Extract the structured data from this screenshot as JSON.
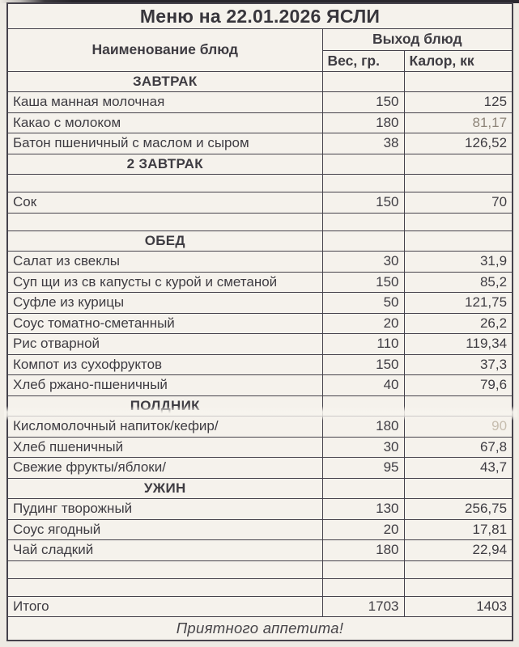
{
  "title": "Меню на 22.01.2026 ЯСЛИ",
  "colors": {
    "paper": "#efece5",
    "ink": "#3e3c42",
    "line": "#45424b"
  },
  "table": {
    "headers": {
      "name": "Наименование блюд",
      "output_group": "Выход блюд",
      "weight": "Вес, гр.",
      "calories": "Калор, кк"
    },
    "rows": [
      {
        "type": "section",
        "label": "ЗАВТРАК"
      },
      {
        "type": "item",
        "name": "Каша манная молочная",
        "weight": "150",
        "calories": "125"
      },
      {
        "type": "item",
        "name": "Какао с молоком",
        "weight": "180",
        "calories": "81,17",
        "dim": true
      },
      {
        "type": "item",
        "name": "Батон пшеничный с маслом и сыром",
        "weight": "38",
        "calories": "126,52"
      },
      {
        "type": "section",
        "label": "2 ЗАВТРАК"
      },
      {
        "type": "empty"
      },
      {
        "type": "item",
        "name": "Сок",
        "weight": "150",
        "calories": "70"
      },
      {
        "type": "empty"
      },
      {
        "type": "section",
        "label": "ОБЕД"
      },
      {
        "type": "item",
        "name": "Салат из свеклы",
        "weight": "30",
        "calories": "31,9"
      },
      {
        "type": "item",
        "name": "Суп щи из св капусты с курой и сметаной",
        "weight": "150",
        "calories": "85,2"
      },
      {
        "type": "item",
        "name": "Суфле из курицы",
        "weight": "50",
        "calories": "121,75"
      },
      {
        "type": "item",
        "name": "Соус томатно-сметанный",
        "weight": "20",
        "calories": "26,2"
      },
      {
        "type": "item",
        "name": "Рис отварной",
        "weight": "110",
        "calories": "119,34"
      },
      {
        "type": "item",
        "name": "Компот из сухофруктов",
        "weight": "150",
        "calories": "37,3"
      },
      {
        "type": "item",
        "name": "Хлеб ржано-пшеничный",
        "weight": "40",
        "calories": "79,6"
      },
      {
        "type": "section",
        "label": "ПОЛДНИК"
      },
      {
        "type": "item",
        "name": "Кисломолочный напиток/кефир/",
        "weight": "180",
        "calories": "90",
        "faded": true
      },
      {
        "type": "item",
        "name": "Хлеб пшеничный",
        "weight": "30",
        "calories": "67,8"
      },
      {
        "type": "item",
        "name": "Свежие фрукты/яблоки/",
        "weight": "95",
        "calories": "43,7"
      },
      {
        "type": "section",
        "label": "УЖИН"
      },
      {
        "type": "item",
        "name": "Пудинг творожный",
        "weight": "130",
        "calories": "256,75"
      },
      {
        "type": "item",
        "name": "Соус ягодный",
        "weight": "20",
        "calories": "17,81"
      },
      {
        "type": "item",
        "name": "Чай сладкий",
        "weight": "180",
        "calories": "22,94"
      },
      {
        "type": "empty"
      },
      {
        "type": "empty"
      },
      {
        "type": "total",
        "name": "Итого",
        "weight": "1703",
        "calories": "1403"
      }
    ],
    "footer": "Приятного аппетита!"
  }
}
